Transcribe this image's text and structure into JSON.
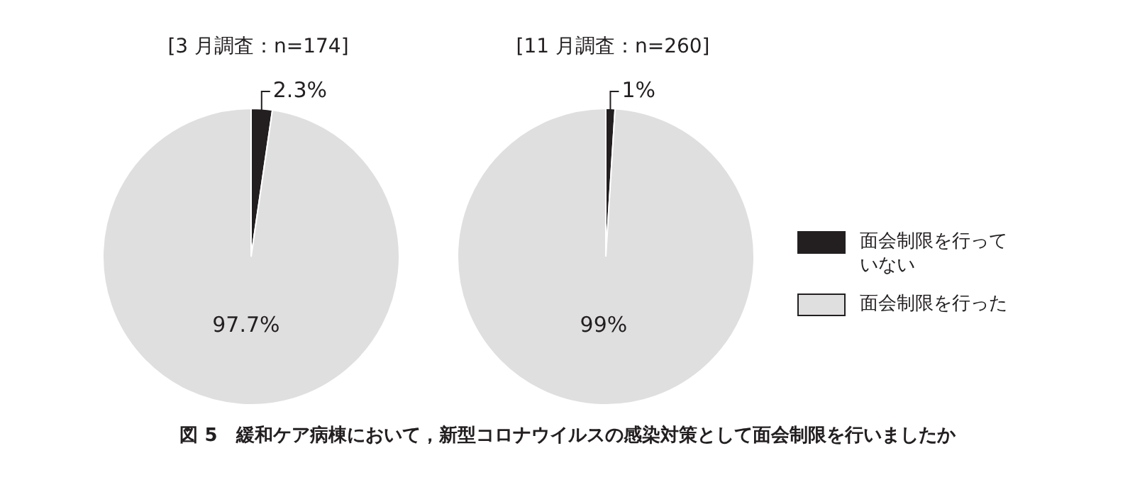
{
  "chart_data": [
    {
      "type": "pie",
      "title": "[3 月調査：n=174]",
      "categories": [
        null,
        null
      ],
      "values": [
        2.3,
        97.7
      ],
      "colors": [
        "#231f20",
        "#e0dfe0"
      ],
      "value_labels": [
        "2.3%",
        "97.7%"
      ],
      "annotations": [
        "図 5　緩和ケア病棟において，新型コロナウイルスの感染対策として面会制限を行いましたか"
      ]
    },
    {
      "type": "pie",
      "title": "[11 月調査：n=260]",
      "categories": [
        "面会制限を行っていない",
        "面会制限を行った"
      ],
      "values": [
        1,
        99
      ],
      "colors": [
        "#231f20",
        "#e0dfe0"
      ],
      "value_labels": [
        "1%",
        "99%"
      ],
      "legend": "right"
    }
  ]
}
